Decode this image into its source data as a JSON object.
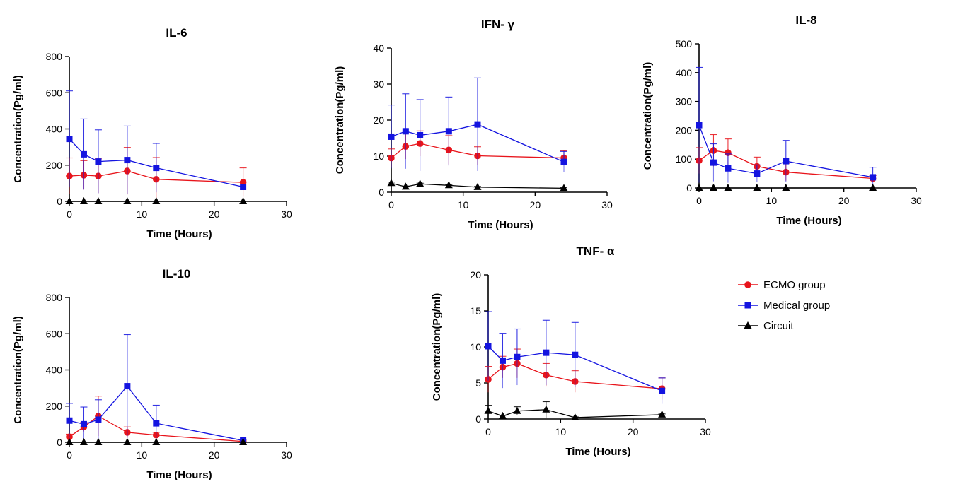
{
  "legend": {
    "placement": "right",
    "items": [
      {
        "label": "ECMO group",
        "color": "#e8141b",
        "marker": "circle"
      },
      {
        "label": "Medical group",
        "color": "#1414e0",
        "marker": "square"
      },
      {
        "label": "Circuit",
        "color": "#000000",
        "marker": "triangle"
      }
    ]
  },
  "chart_data": [
    {
      "type": "line",
      "title": "IL-6",
      "xlabel": "Time (Hours)",
      "ylabel": "Concentration(Pg/ml)",
      "xlim": [
        0,
        30
      ],
      "ylim": [
        0,
        800
      ],
      "xticks": [
        "0",
        "10",
        "20",
        "30"
      ],
      "yticks": [
        "0",
        "200",
        "400",
        "600",
        "800"
      ],
      "x": [
        0,
        2,
        4,
        8,
        12,
        24
      ],
      "series": [
        {
          "name": "ECMO group",
          "values": [
            140,
            145,
            140,
            168,
            122,
            105
          ],
          "errors": [
            100,
            80,
            95,
            130,
            120,
            80
          ]
        },
        {
          "name": "Medical group",
          "values": [
            345,
            260,
            220,
            228,
            185,
            80
          ],
          "errors": [
            265,
            195,
            175,
            188,
            135,
            0
          ]
        },
        {
          "name": "Circuit",
          "values": [
            0,
            0,
            0,
            0,
            0,
            0
          ],
          "errors": [
            0,
            0,
            0,
            0,
            0,
            0
          ]
        }
      ]
    },
    {
      "type": "line",
      "title": "IFN- γ",
      "xlabel": "Time (Hours)",
      "ylabel": "Concentration(Pg/ml)",
      "xlim": [
        0,
        30
      ],
      "ylim": [
        0,
        40
      ],
      "xticks": [
        "0",
        "10",
        "20",
        "30"
      ],
      "yticks": [
        "0",
        "10",
        "20",
        "30",
        "40"
      ],
      "x": [
        0,
        2,
        4,
        8,
        12,
        24
      ],
      "series": [
        {
          "name": "ECMO group",
          "values": [
            9.5,
            12.7,
            13.5,
            11.7,
            10.1,
            9.5
          ],
          "errors": [
            2.5,
            3.5,
            3.5,
            4.0,
            2.5,
            2.0
          ]
        },
        {
          "name": "Medical group",
          "values": [
            15.4,
            16.9,
            15.8,
            16.9,
            18.8,
            8.4
          ],
          "errors": [
            8.8,
            10.4,
            9.9,
            9.5,
            12.9,
            2.9
          ]
        },
        {
          "name": "Circuit",
          "values": [
            2.5,
            1.5,
            2.3,
            1.9,
            1.4,
            1.1
          ],
          "errors": [
            0.3,
            0.2,
            0.2,
            0.2,
            0.2,
            0.2
          ]
        }
      ]
    },
    {
      "type": "line",
      "title": "IL-8",
      "xlabel": "Time (Hours)",
      "ylabel": "Concentration(Pg/ml)",
      "xlim": [
        0,
        30
      ],
      "ylim": [
        0,
        500
      ],
      "xticks": [
        "0",
        "10",
        "20",
        "30"
      ],
      "yticks": [
        "0",
        "100",
        "200",
        "300",
        "400",
        "500"
      ],
      "x": [
        0,
        2,
        4,
        8,
        12,
        24
      ],
      "series": [
        {
          "name": "ECMO group",
          "values": [
            95,
            130,
            122,
            75,
            55,
            33
          ],
          "errors": [
            45,
            55,
            48,
            32,
            30,
            10
          ]
        },
        {
          "name": "Medical group",
          "values": [
            218,
            88,
            68,
            50,
            93,
            37
          ],
          "errors": [
            200,
            65,
            50,
            30,
            72,
            35
          ]
        },
        {
          "name": "Circuit",
          "values": [
            0,
            0,
            0,
            0,
            0,
            0
          ],
          "errors": [
            0,
            0,
            0,
            0,
            0,
            0
          ]
        }
      ]
    },
    {
      "type": "line",
      "title": "IL-10",
      "xlabel": "Time (Hours)",
      "ylabel": "Concentration(Pg/ml)",
      "xlim": [
        0,
        30
      ],
      "ylim": [
        0,
        800
      ],
      "xticks": [
        "0",
        "10",
        "20",
        "30"
      ],
      "yticks": [
        "0",
        "200",
        "400",
        "600",
        "800"
      ],
      "x": [
        0,
        2,
        4,
        8,
        12,
        24
      ],
      "series": [
        {
          "name": "ECMO group",
          "values": [
            30,
            85,
            145,
            55,
            40,
            5
          ],
          "errors": [
            15,
            25,
            110,
            30,
            15,
            3
          ]
        },
        {
          "name": "Medical group",
          "values": [
            120,
            100,
            125,
            310,
            105,
            10
          ],
          "errors": [
            95,
            95,
            110,
            285,
            100,
            5
          ]
        },
        {
          "name": "Circuit",
          "values": [
            0,
            0,
            0,
            0,
            0,
            0
          ],
          "errors": [
            0,
            0,
            0,
            0,
            0,
            0
          ]
        }
      ]
    },
    {
      "type": "line",
      "title": "TNF- α",
      "xlabel": "Time (Hours)",
      "ylabel": "Concentration(Pg/ml)",
      "xlim": [
        0,
        30
      ],
      "ylim": [
        0,
        20
      ],
      "xticks": [
        "0",
        "10",
        "20",
        "30"
      ],
      "yticks": [
        "0",
        "5",
        "10",
        "15",
        "20"
      ],
      "x": [
        0,
        2,
        4,
        8,
        12,
        24
      ],
      "series": [
        {
          "name": "ECMO group",
          "values": [
            5.5,
            7.2,
            7.7,
            6.1,
            5.2,
            4.2
          ],
          "errors": [
            1.8,
            1.5,
            2.0,
            1.6,
            1.5,
            1.5
          ]
        },
        {
          "name": "Medical group",
          "values": [
            10.1,
            8.1,
            8.6,
            9.2,
            8.9,
            3.9
          ],
          "errors": [
            4.8,
            3.8,
            3.9,
            4.5,
            4.5,
            1.8
          ]
        },
        {
          "name": "Circuit",
          "values": [
            1.1,
            0.4,
            1.1,
            1.3,
            0.2,
            0.6
          ],
          "errors": [
            0.8,
            0.1,
            0.6,
            1.1,
            0.1,
            0.1
          ]
        }
      ]
    }
  ]
}
